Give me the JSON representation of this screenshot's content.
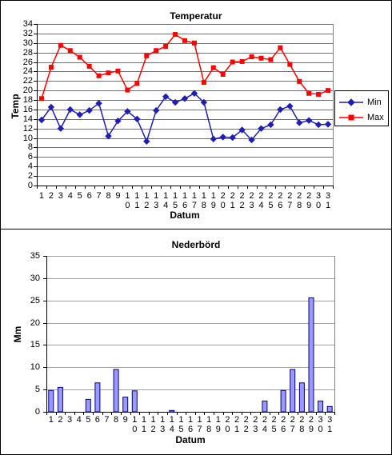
{
  "chart_data": [
    {
      "type": "line",
      "title": "Temperatur",
      "xlabel": "Datum",
      "ylabel": "Temp",
      "categories": [
        "1",
        "2",
        "3",
        "4",
        "5",
        "6",
        "7",
        "8",
        "9",
        "10",
        "11",
        "12",
        "13",
        "14",
        "15",
        "16",
        "17",
        "18",
        "19",
        "20",
        "21",
        "22",
        "23",
        "24",
        "25",
        "26",
        "27",
        "28",
        "29",
        "30",
        "31"
      ],
      "ylim": [
        0,
        34
      ],
      "y_ticks": [
        "0",
        "2",
        "4",
        "6",
        "8",
        "10",
        "12",
        "14",
        "16",
        "18",
        "20",
        "22",
        "24",
        "26",
        "28",
        "30",
        "32",
        "34"
      ],
      "grid": true,
      "legend": "right",
      "series": [
        {
          "name": "Min",
          "color": "#1F1FB4",
          "marker": "diamond",
          "values": [
            13.8,
            16.5,
            12.0,
            16.0,
            14.9,
            15.8,
            17.3,
            10.4,
            13.6,
            15.6,
            14.0,
            9.3,
            15.8,
            18.7,
            17.5,
            18.3,
            19.4,
            17.5,
            9.8,
            10.2,
            10.1,
            11.7,
            9.6,
            12.0,
            12.8,
            16.0,
            16.7,
            13.2,
            13.7,
            12.8,
            12.9
          ]
        },
        {
          "name": "Max",
          "color": "#FF0000",
          "marker": "square",
          "values": [
            18.3,
            24.9,
            29.5,
            28.4,
            27.0,
            25.1,
            23.1,
            23.7,
            24.1,
            20.1,
            21.5,
            27.3,
            28.4,
            29.3,
            31.8,
            30.5,
            30.0,
            21.7,
            24.8,
            23.4,
            26.0,
            26.1,
            27.1,
            26.8,
            26.5,
            29.0,
            25.5,
            21.9,
            19.4,
            19.2,
            20.0
          ]
        }
      ]
    },
    {
      "type": "bar",
      "title": "Nederbörd",
      "xlabel": "Datum",
      "ylabel": "Mm",
      "categories": [
        "1",
        "2",
        "3",
        "4",
        "5",
        "6",
        "7",
        "8",
        "9",
        "10",
        "11",
        "12",
        "13",
        "14",
        "15",
        "16",
        "17",
        "18",
        "19",
        "20",
        "21",
        "22",
        "23",
        "24",
        "25",
        "26",
        "27",
        "28",
        "29",
        "30",
        "31"
      ],
      "ylim": [
        0,
        35
      ],
      "y_ticks": [
        "0",
        "5",
        "10",
        "15",
        "20",
        "25",
        "30",
        "35"
      ],
      "grid": true,
      "bar_color": "#9999FF",
      "bar_edge_color": "#000080",
      "values": [
        4.8,
        5.5,
        0,
        0,
        2.8,
        6.5,
        0,
        9.5,
        3.3,
        4.7,
        0,
        0,
        0,
        0.3,
        0,
        0,
        0,
        0,
        0,
        0,
        0,
        0,
        0,
        2.4,
        0,
        4.8,
        9.5,
        6.5,
        25.6,
        2.4,
        1.2
      ]
    }
  ]
}
